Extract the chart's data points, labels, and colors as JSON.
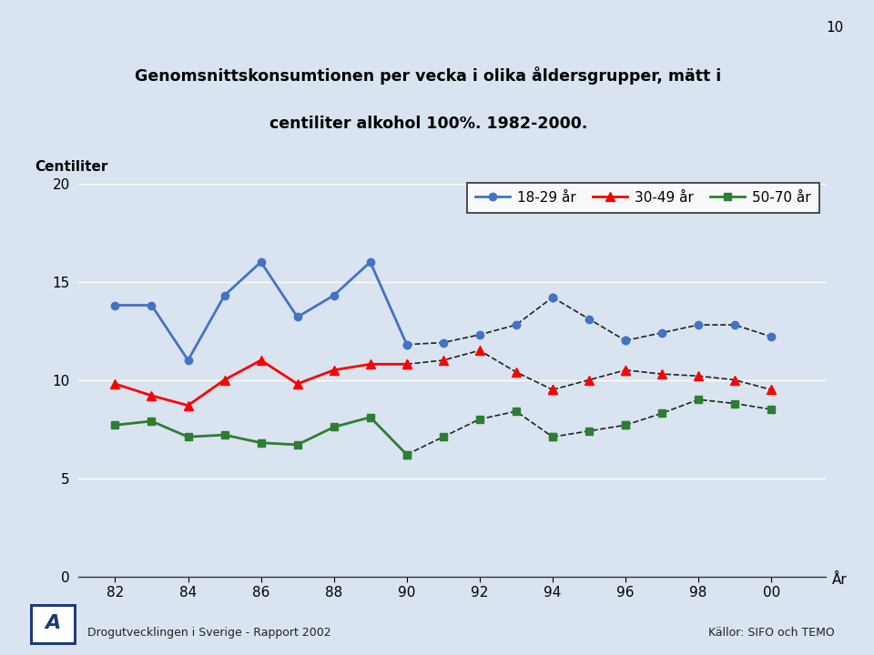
{
  "title_line1": "Genomsnittskonsumtionen per vecka i olika åldersgrupper, mätt i",
  "title_line2": "centiliter alkohol 100%. 1982-2000.",
  "ylabel": "Centiliter",
  "xlabel_end": "År",
  "page_number": "10",
  "footer_left": "Drogutvecklingen i Sverige - Rapport 2002",
  "footer_right": "Källor: SIFO och TEMO",
  "background_color": "#d9e4f0",
  "plot_bg_color": "#d9e4f0",
  "ylim": [
    0,
    20
  ],
  "yticks": [
    0,
    5,
    10,
    15,
    20
  ],
  "xticklabels": [
    "82",
    "84",
    "86",
    "88",
    "90",
    "92",
    "94",
    "96",
    "98",
    "00"
  ],
  "series": {
    "blue": {
      "label": "18-29 år",
      "color": "#4472C4",
      "marker": "o",
      "markersize": 6,
      "solid_years": [
        82,
        83,
        84,
        85,
        86,
        87,
        88,
        89,
        90
      ],
      "solid_values": [
        13.8,
        13.8,
        11.0,
        14.3,
        16.0,
        13.2,
        14.3,
        16.0,
        11.8
      ],
      "dashed_years": [
        90,
        91,
        92,
        93,
        94
      ],
      "dashed_values": [
        11.8,
        11.9,
        12.3,
        12.8,
        14.2
      ],
      "dashed2_years": [
        94,
        95,
        96
      ],
      "dashed2_values": [
        14.2,
        13.1,
        12.0
      ],
      "dashed3_years": [
        96,
        97,
        98,
        99,
        100
      ],
      "dashed3_values": [
        12.0,
        12.4,
        12.8,
        12.8,
        12.2
      ]
    },
    "red": {
      "label": "30-49 år",
      "color": "#FF0000",
      "marker": "^",
      "markersize": 7,
      "solid_years": [
        82,
        83,
        84,
        85,
        86,
        87,
        88,
        89,
        90
      ],
      "solid_values": [
        9.8,
        9.2,
        8.7,
        10.0,
        11.0,
        9.8,
        10.5,
        10.8,
        10.8
      ],
      "dashed_years": [
        90,
        91,
        92,
        93,
        94
      ],
      "dashed_values": [
        10.8,
        11.0,
        11.5,
        10.4,
        9.5
      ],
      "dashed2_years": [
        94,
        95,
        96
      ],
      "dashed2_values": [
        9.5,
        10.0,
        10.5
      ],
      "dashed3_years": [
        96,
        97,
        98,
        99,
        100
      ],
      "dashed3_values": [
        10.5,
        10.3,
        10.2,
        10.0,
        9.5
      ]
    },
    "green": {
      "label": "50-70 år",
      "color": "#2E7D32",
      "marker": "s",
      "markersize": 6,
      "solid_years": [
        82,
        83,
        84,
        85,
        86,
        87,
        88,
        89,
        90
      ],
      "solid_values": [
        7.7,
        7.9,
        7.1,
        7.2,
        6.8,
        6.7,
        7.6,
        8.1,
        6.2
      ],
      "dashed_years": [
        90,
        91,
        92,
        93,
        94
      ],
      "dashed_values": [
        6.2,
        7.1,
        8.0,
        8.4,
        7.1
      ],
      "dashed2_years": [
        94,
        95,
        96
      ],
      "dashed2_values": [
        7.1,
        7.4,
        7.7
      ],
      "dashed3_years": [
        96,
        97,
        98,
        99,
        100
      ],
      "dashed3_values": [
        7.7,
        8.3,
        9.0,
        8.8,
        8.5
      ]
    }
  }
}
